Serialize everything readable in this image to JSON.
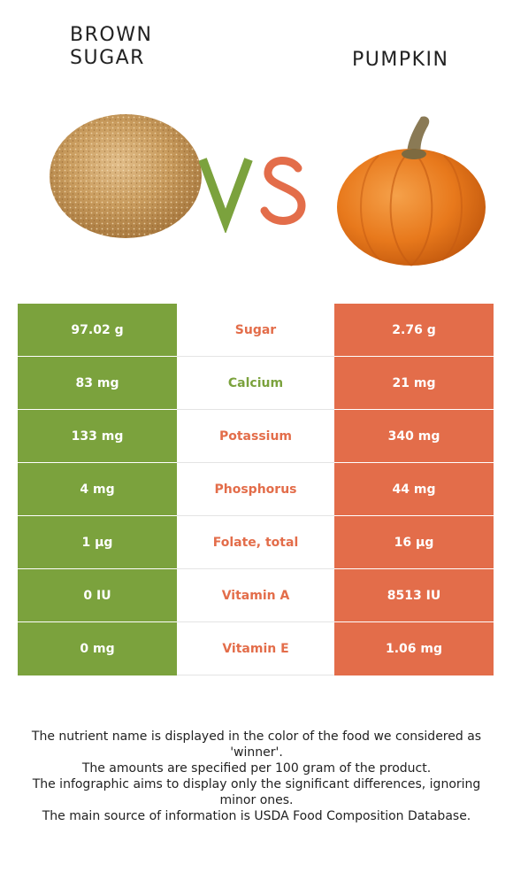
{
  "titles": {
    "left": "BROWN\nSUGAR",
    "right": "PUMPKIN"
  },
  "vs": {
    "v_color": "#7ba23d",
    "s_color": "#e36d4a"
  },
  "colors": {
    "winner_left": "#7ba23d",
    "winner_right": "#e36d4a"
  },
  "rows": [
    {
      "left": "97.02 g",
      "name": "Sugar",
      "right": "2.76 g",
      "winner": "right"
    },
    {
      "left": "83 mg",
      "name": "Calcium",
      "right": "21 mg",
      "winner": "left"
    },
    {
      "left": "133 mg",
      "name": "Potassium",
      "right": "340 mg",
      "winner": "right"
    },
    {
      "left": "4 mg",
      "name": "Phosphorus",
      "right": "44 mg",
      "winner": "right"
    },
    {
      "left": "1 µg",
      "name": "Folate, total",
      "right": "16 µg",
      "winner": "right"
    },
    {
      "left": "0 IU",
      "name": "Vitamin A",
      "right": "8513 IU",
      "winner": "right"
    },
    {
      "left": "0 mg",
      "name": "Vitamin E",
      "right": "1.06 mg",
      "winner": "right"
    }
  ],
  "footer": [
    "The nutrient name is displayed in the color of the food we considered as 'winner'.",
    "The amounts are specified per 100 gram of the product.",
    "The infographic aims to display only the significant differences, ignoring minor ones.",
    "The main source of information is USDA Food Composition Database."
  ]
}
